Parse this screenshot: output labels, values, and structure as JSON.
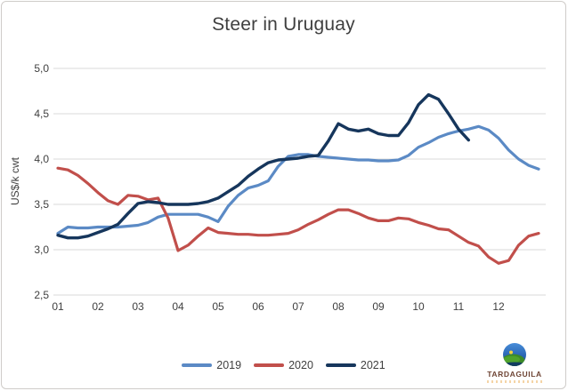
{
  "colors": {
    "grid": "#d8d8d8",
    "text": "#3f3f3f",
    "s2019": "#5b8ac5",
    "s2020": "#c14f4b",
    "s2021": "#16365c"
  },
  "logo": {
    "name": "TARDAGUILA"
  },
  "chart_data": {
    "type": "line",
    "title": "Steer in Uruguay",
    "xlabel": "",
    "ylabel": "US$/k cwt",
    "ylim": [
      2.5,
      5.0
    ],
    "grid": true,
    "legend_position": "bottom",
    "xticks": [
      "01",
      "02",
      "03",
      "04",
      "05",
      "06",
      "07",
      "08",
      "09",
      "10",
      "11",
      "12"
    ],
    "yticks": [
      {
        "value": 5.0,
        "label": "5,0"
      },
      {
        "value": 4.5,
        "label": "4,5"
      },
      {
        "value": 4.0,
        "label": "4,0"
      },
      {
        "value": 3.5,
        "label": "3,5"
      },
      {
        "value": 3.0,
        "label": "3,0"
      },
      {
        "value": 2.5,
        "label": "2,5"
      }
    ],
    "x_unit": "month (01-12, weekly points)",
    "series": [
      {
        "name": "2019",
        "color": "#5b8ac5",
        "width": 3.2,
        "x_start": 1.0,
        "x_step": 0.25,
        "values": [
          3.18,
          3.25,
          3.24,
          3.24,
          3.25,
          3.25,
          3.25,
          3.26,
          3.27,
          3.3,
          3.36,
          3.39,
          3.39,
          3.39,
          3.39,
          3.36,
          3.31,
          3.48,
          3.6,
          3.68,
          3.71,
          3.76,
          3.92,
          4.03,
          4.05,
          4.05,
          4.03,
          4.02,
          4.01,
          4.0,
          3.99,
          3.99,
          3.98,
          3.98,
          3.99,
          4.04,
          4.13,
          4.18,
          4.24,
          4.28,
          4.31,
          4.33,
          4.36,
          4.32,
          4.23,
          4.1,
          4.0,
          3.93,
          3.89
        ]
      },
      {
        "name": "2020",
        "color": "#c14f4b",
        "width": 3.2,
        "x_start": 1.0,
        "x_step": 0.25,
        "values": [
          3.9,
          3.88,
          3.82,
          3.73,
          3.63,
          3.54,
          3.5,
          3.6,
          3.59,
          3.55,
          3.57,
          3.35,
          2.99,
          3.05,
          3.15,
          3.24,
          3.19,
          3.18,
          3.17,
          3.17,
          3.16,
          3.16,
          3.17,
          3.18,
          3.22,
          3.28,
          3.33,
          3.39,
          3.44,
          3.44,
          3.4,
          3.35,
          3.32,
          3.32,
          3.35,
          3.34,
          3.3,
          3.27,
          3.23,
          3.22,
          3.15,
          3.08,
          3.04,
          2.92,
          2.85,
          2.88,
          3.05,
          3.15,
          3.18
        ]
      },
      {
        "name": "2021",
        "color": "#16365c",
        "width": 3.4,
        "x_start": 1.0,
        "x_step": 0.25,
        "values": [
          3.16,
          3.13,
          3.13,
          3.15,
          3.19,
          3.23,
          3.28,
          3.4,
          3.51,
          3.53,
          3.52,
          3.5,
          3.5,
          3.5,
          3.51,
          3.53,
          3.57,
          3.64,
          3.71,
          3.81,
          3.89,
          3.96,
          3.99,
          4.0,
          4.01,
          4.03,
          4.04,
          4.2,
          4.39,
          4.33,
          4.31,
          4.33,
          4.28,
          4.26,
          4.26,
          4.4,
          4.6,
          4.71,
          4.66,
          4.5,
          4.33,
          4.21
        ]
      }
    ]
  }
}
